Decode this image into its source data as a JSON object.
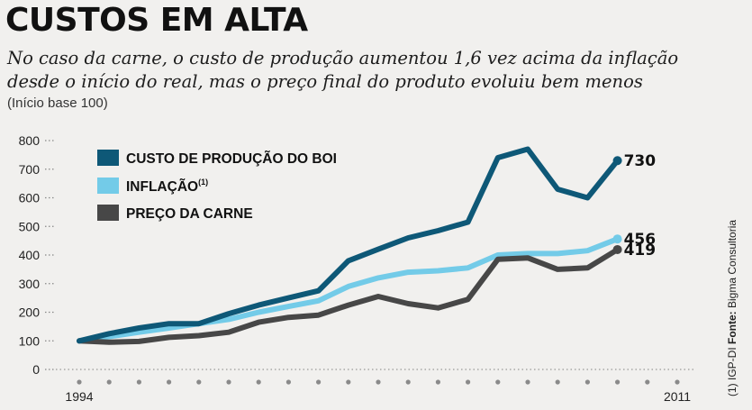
{
  "title": "CUSTOS EM ALTA",
  "subtitle": "No caso da carne, o custo de produção aumentou 1,6 vez acima da inflação desde o início do real, mas o preço final do produto evoluiu bem menos",
  "base_note": "(Início base 100)",
  "source": {
    "note": "(1) IGP-DI",
    "label": "Fonte:",
    "name": "Bigma Consultoria"
  },
  "colors": {
    "custo": "#0e5877",
    "inflacao": "#73cbe8",
    "preco": "#474747"
  },
  "chart_data": {
    "type": "line",
    "title": "CUSTOS EM ALTA",
    "x": [
      0,
      1,
      2,
      3,
      4,
      5,
      6,
      7,
      8,
      9,
      10,
      11,
      12,
      13,
      14,
      15,
      16,
      17,
      18,
      19,
      20
    ],
    "x_tick_labels": [
      {
        "x": 0,
        "label": "1994"
      },
      {
        "x": 20,
        "label": "2011"
      }
    ],
    "ylim": [
      0,
      800
    ],
    "y_ticks": [
      0,
      100,
      200,
      300,
      400,
      500,
      600,
      700,
      800
    ],
    "grid": false,
    "legend_position": "top-left",
    "series": [
      {
        "name": "CUSTO DE PRODUÇÃO DO BOI",
        "color_key": "custo",
        "values": [
          100,
          125,
          145,
          160,
          160,
          195,
          225,
          250,
          275,
          380,
          420,
          460,
          485,
          515,
          740,
          770,
          630,
          600,
          730,
          730,
          730
        ],
        "end_label": "730"
      },
      {
        "name": "INFLAÇÃO",
        "superscript": "(1)",
        "color_key": "inflacao",
        "values": [
          100,
          115,
          130,
          145,
          160,
          175,
          200,
          220,
          240,
          290,
          320,
          340,
          345,
          355,
          400,
          405,
          405,
          415,
          456,
          456,
          456
        ],
        "end_label": "456"
      },
      {
        "name": "PREÇO DA CARNE",
        "color_key": "preco",
        "values": [
          100,
          95,
          98,
          112,
          118,
          130,
          165,
          182,
          190,
          225,
          255,
          230,
          215,
          245,
          385,
          390,
          350,
          355,
          419,
          419,
          419
        ],
        "end_label": "419"
      }
    ]
  }
}
